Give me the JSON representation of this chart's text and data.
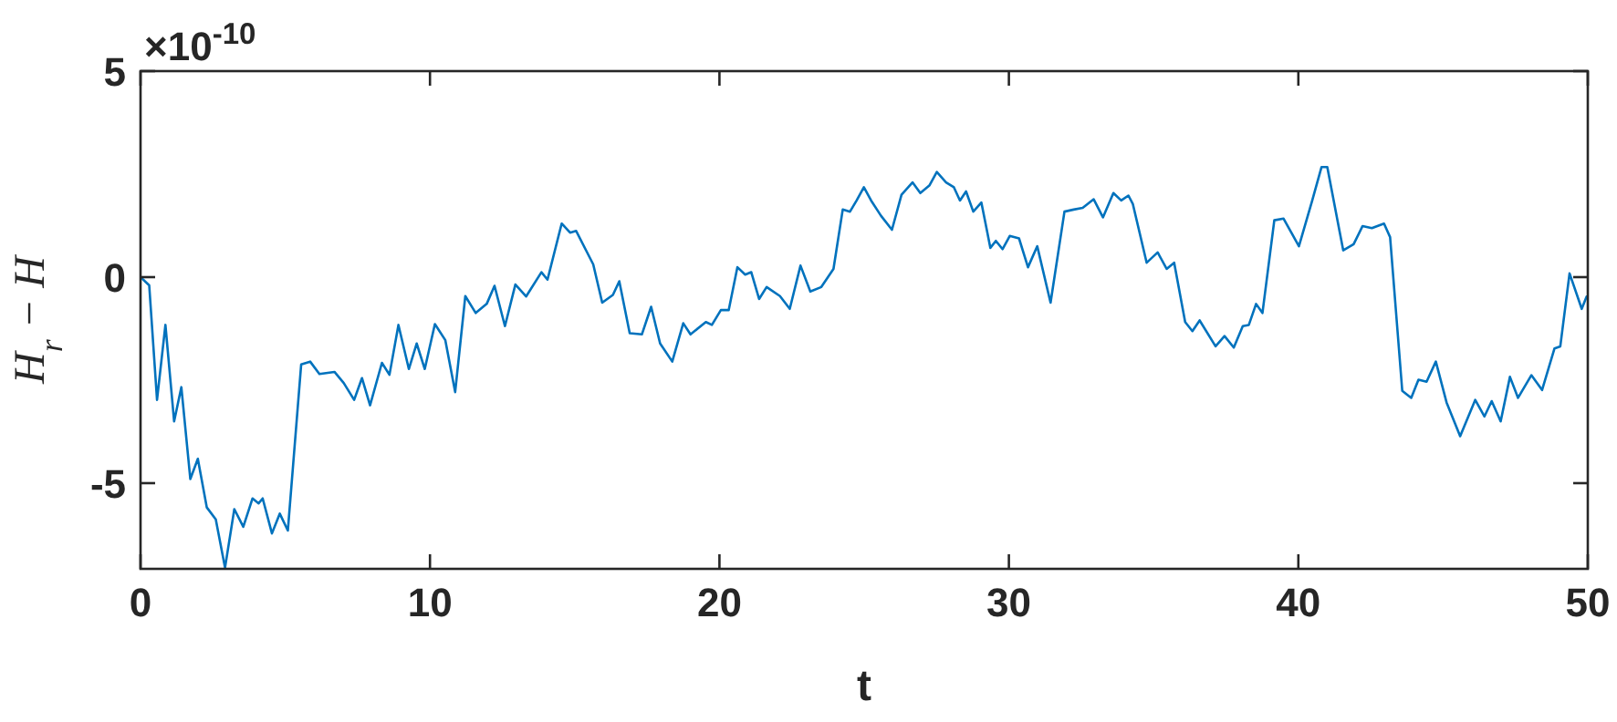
{
  "chart_data": {
    "type": "line",
    "xlabel": "t",
    "ylabel": "H$_{r}$ − H",
    "annotations": [
      "×10$^{-10}$"
    ],
    "xlim": [
      0,
      50
    ],
    "ylim": [
      -7.08,
      5
    ],
    "xticks": [
      0,
      10,
      20,
      30,
      40,
      50
    ],
    "yticks": [
      -5,
      0,
      5
    ],
    "grid": false,
    "line_style": "solid",
    "marker": "none",
    "series": [
      {
        "color": "#0072bd",
        "x": [
          0,
          0.3,
          0.57,
          0.86,
          1.16,
          1.41,
          1.72,
          1.98,
          2.29,
          2.6,
          2.92,
          3.24,
          3.55,
          3.87,
          4.08,
          4.22,
          4.54,
          4.81,
          5.09,
          5.55,
          5.86,
          6.18,
          6.7,
          7.02,
          7.38,
          7.65,
          7.93,
          8.34,
          8.6,
          8.91,
          9.27,
          9.54,
          9.82,
          10.17,
          10.53,
          10.87,
          11.22,
          11.58,
          11.96,
          12.23,
          12.59,
          12.95,
          13.32,
          13.85,
          14.06,
          14.55,
          14.84,
          15.05,
          15.64,
          15.95,
          16.32,
          16.54,
          16.9,
          17.32,
          17.64,
          17.95,
          18.37,
          18.75,
          19.0,
          19.53,
          19.74,
          20.05,
          20.32,
          20.62,
          20.89,
          21.1,
          21.37,
          21.63,
          22.09,
          22.43,
          22.8,
          23.14,
          23.52,
          23.94,
          24.26,
          24.51,
          24.74,
          24.99,
          25.24,
          25.58,
          25.96,
          26.29,
          26.67,
          26.94,
          27.26,
          27.51,
          27.83,
          28.1,
          28.31,
          28.52,
          28.77,
          29.05,
          29.36,
          29.55,
          29.78,
          30.03,
          30.35,
          30.66,
          30.98,
          31.44,
          31.92,
          32.24,
          32.55,
          32.93,
          33.25,
          33.61,
          33.88,
          34.13,
          34.28,
          34.76,
          35.14,
          35.45,
          35.71,
          36.09,
          36.34,
          36.59,
          37.14,
          37.45,
          37.77,
          38.08,
          38.29,
          38.54,
          38.76,
          39.17,
          39.49,
          40.02,
          40.48,
          40.8,
          41.0,
          41.55,
          41.91,
          42.22,
          42.54,
          42.96,
          43.17,
          43.59,
          43.9,
          44.15,
          44.43,
          44.75,
          45.12,
          45.59,
          46.11,
          46.43,
          46.68,
          46.99,
          47.31,
          47.59,
          48.05,
          48.42,
          48.85,
          49.05,
          49.37,
          49.79,
          49.96
        ],
        "values": [
          0,
          -0.2,
          -2.98,
          -1.16,
          -3.5,
          -2.67,
          -4.9,
          -4.41,
          -5.59,
          -5.88,
          -7.05,
          -5.63,
          -6.06,
          -5.37,
          -5.49,
          -5.37,
          -6.22,
          -5.74,
          -6.15,
          -2.12,
          -2.05,
          -2.35,
          -2.3,
          -2.57,
          -2.98,
          -2.45,
          -3.11,
          -2.08,
          -2.37,
          -1.16,
          -2.23,
          -1.61,
          -2.23,
          -1.14,
          -1.53,
          -2.79,
          -0.46,
          -0.87,
          -0.65,
          -0.21,
          -1.19,
          -0.18,
          -0.47,
          0.12,
          -0.06,
          1.3,
          1.08,
          1.12,
          0.31,
          -0.62,
          -0.43,
          -0.1,
          -1.36,
          -1.39,
          -0.72,
          -1.61,
          -2.05,
          -1.12,
          -1.39,
          -1.09,
          -1.16,
          -0.8,
          -0.8,
          0.24,
          0.06,
          0.12,
          -0.53,
          -0.24,
          -0.46,
          -0.77,
          0.28,
          -0.35,
          -0.24,
          0.2,
          1.64,
          1.59,
          1.86,
          2.18,
          1.86,
          1.49,
          1.15,
          2.0,
          2.3,
          2.04,
          2.23,
          2.55,
          2.3,
          2.18,
          1.86,
          2.08,
          1.59,
          1.81,
          0.71,
          0.88,
          0.68,
          1.0,
          0.94,
          0.24,
          0.75,
          -0.62,
          1.59,
          1.64,
          1.68,
          1.89,
          1.45,
          2.04,
          1.86,
          1.98,
          1.78,
          0.35,
          0.6,
          0.2,
          0.35,
          -1.09,
          -1.31,
          -1.05,
          -1.68,
          -1.43,
          -1.71,
          -1.19,
          -1.16,
          -0.65,
          -0.87,
          1.38,
          1.42,
          0.75,
          1.86,
          2.67,
          2.67,
          0.65,
          0.8,
          1.24,
          1.19,
          1.3,
          0.97,
          -2.76,
          -2.93,
          -2.49,
          -2.54,
          -2.05,
          -3.04,
          -3.86,
          -2.98,
          -3.38,
          -3.01,
          -3.5,
          -2.42,
          -2.93,
          -2.38,
          -2.74,
          -1.73,
          -1.68,
          0.09,
          -0.77,
          -0.47
        ]
      }
    ]
  }
}
